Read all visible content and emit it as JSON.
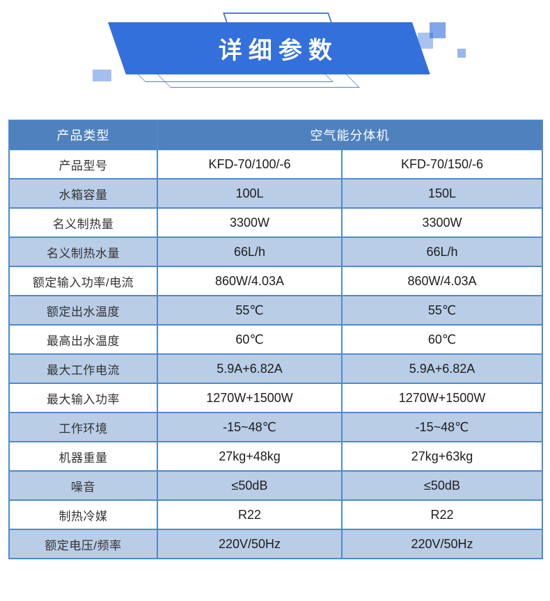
{
  "banner": {
    "title": "详细参数"
  },
  "colors": {
    "banner_blue": "#3370dc",
    "decor_line_blue": "#4a7fd4",
    "table_header_blue": "#4e81bd",
    "row_light_blue": "#b9cde6",
    "table_border_blue": "#4e8bca"
  },
  "table": {
    "header": {
      "label": "产品类型",
      "value": "空气能分体机"
    },
    "rows": [
      {
        "label": "产品型号",
        "col1": "KFD-70/100/-6",
        "col2": "KFD-70/150/-6"
      },
      {
        "label": "水箱容量",
        "col1": "100L",
        "col2": "150L"
      },
      {
        "label": "名义制热量",
        "col1": "3300W",
        "col2": "3300W"
      },
      {
        "label": "名义制热水量",
        "col1": "66L/h",
        "col2": "66L/h"
      },
      {
        "label": "额定输入功率/电流",
        "col1": "860W/4.03A",
        "col2": "860W/4.03A"
      },
      {
        "label": "额定出水温度",
        "col1": "55℃",
        "col2": "55℃"
      },
      {
        "label": "最高出水温度",
        "col1": "60℃",
        "col2": "60℃"
      },
      {
        "label": "最大工作电流",
        "col1": "5.9A+6.82A",
        "col2": "5.9A+6.82A"
      },
      {
        "label": "最大输入功率",
        "col1": "1270W+1500W",
        "col2": "1270W+1500W"
      },
      {
        "label": "工作环境",
        "col1": "-15~48℃",
        "col2": "-15~48℃"
      },
      {
        "label": "机器重量",
        "col1": "27kg+48kg",
        "col2": "27kg+63kg"
      },
      {
        "label": "噪音",
        "col1": "≤50dB",
        "col2": "≤50dB"
      },
      {
        "label": "制热冷媒",
        "col1": "R22",
        "col2": "R22"
      },
      {
        "label": "额定电压/频率",
        "col1": "220V/50Hz",
        "col2": "220V/50Hz"
      }
    ]
  }
}
